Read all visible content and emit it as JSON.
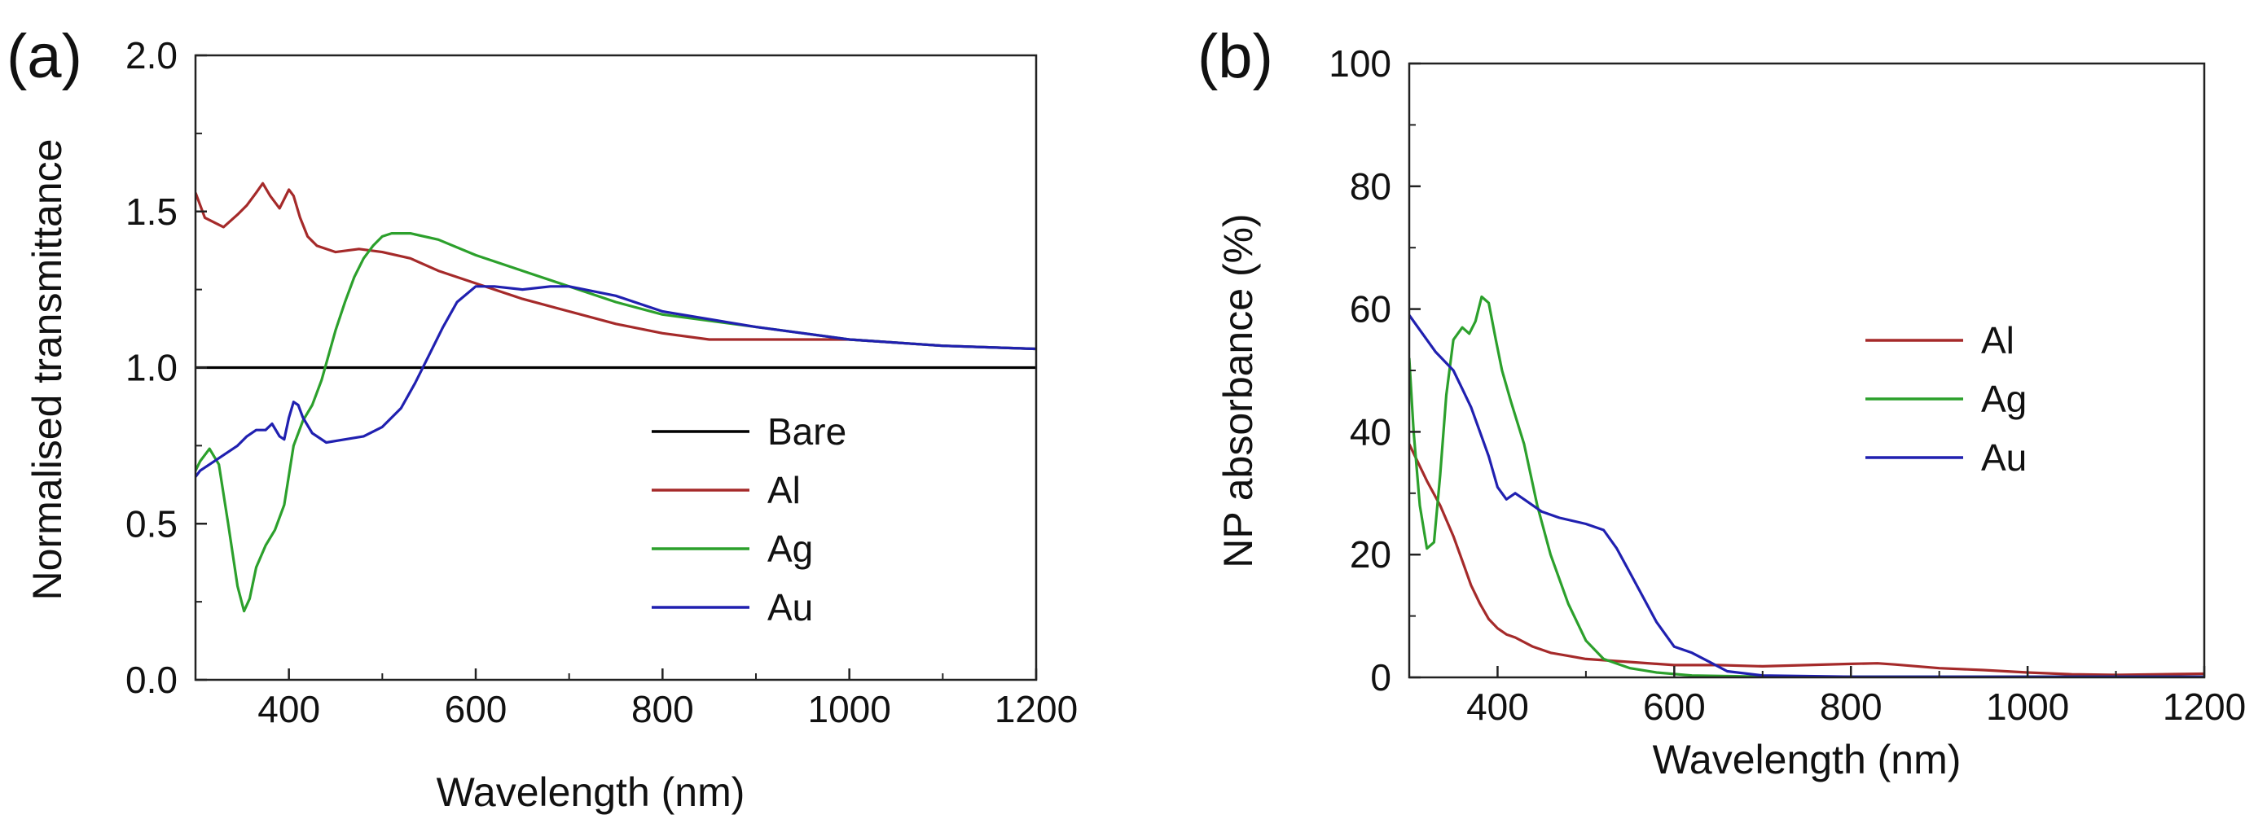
{
  "chart_data": [
    {
      "type": "line",
      "panel_label": "(a)",
      "title": "",
      "xlabel": "Wavelength (nm)",
      "ylabel": "Normalised transmittance",
      "xlim": [
        300,
        1200
      ],
      "ylim": [
        0.0,
        2.0
      ],
      "xticks": [
        400,
        600,
        800,
        1000,
        1200
      ],
      "xtick_labels": [
        "400",
        "600",
        "800",
        "1000",
        "1200"
      ],
      "yticks": [
        0.0,
        0.5,
        1.0,
        1.5,
        2.0
      ],
      "ytick_labels": [
        "0.0",
        "0.5",
        "1.0",
        "1.5",
        "2.0"
      ],
      "grid": false,
      "legend_position": "lower-right",
      "series": [
        {
          "name": "Bare",
          "color": "#000000",
          "x": [
            300,
            1200
          ],
          "y": [
            1.0,
            1.0
          ]
        },
        {
          "name": "Al",
          "color": "#a52a2a",
          "x": [
            300,
            310,
            330,
            345,
            355,
            365,
            372,
            380,
            390,
            400,
            405,
            412,
            420,
            430,
            450,
            475,
            500,
            530,
            560,
            600,
            650,
            700,
            750,
            800,
            850,
            900,
            950,
            1000,
            1100,
            1200
          ],
          "y": [
            1.56,
            1.48,
            1.45,
            1.49,
            1.52,
            1.56,
            1.59,
            1.55,
            1.51,
            1.57,
            1.55,
            1.48,
            1.42,
            1.39,
            1.37,
            1.38,
            1.37,
            1.35,
            1.31,
            1.27,
            1.22,
            1.18,
            1.14,
            1.11,
            1.09,
            1.09,
            1.09,
            1.09,
            1.07,
            1.06
          ]
        },
        {
          "name": "Ag",
          "color": "#2ca02c",
          "x": [
            300,
            305,
            315,
            325,
            335,
            345,
            352,
            358,
            365,
            375,
            385,
            395,
            405,
            415,
            425,
            435,
            450,
            460,
            470,
            480,
            490,
            500,
            510,
            530,
            560,
            600,
            650,
            700,
            750,
            800,
            900,
            1000,
            1100,
            1200
          ],
          "y": [
            0.67,
            0.7,
            0.74,
            0.69,
            0.5,
            0.3,
            0.22,
            0.26,
            0.36,
            0.43,
            0.48,
            0.56,
            0.75,
            0.83,
            0.88,
            0.96,
            1.12,
            1.21,
            1.29,
            1.35,
            1.39,
            1.42,
            1.43,
            1.43,
            1.41,
            1.36,
            1.31,
            1.26,
            1.21,
            1.17,
            1.13,
            1.09,
            1.07,
            1.06
          ]
        },
        {
          "name": "Au",
          "color": "#2020b0",
          "x": [
            300,
            305,
            315,
            330,
            345,
            355,
            365,
            375,
            382,
            390,
            395,
            400,
            405,
            410,
            415,
            425,
            440,
            460,
            480,
            500,
            520,
            535,
            550,
            565,
            580,
            600,
            620,
            650,
            680,
            700,
            750,
            800,
            900,
            1000,
            1100,
            1200
          ],
          "y": [
            0.65,
            0.67,
            0.69,
            0.72,
            0.75,
            0.78,
            0.8,
            0.8,
            0.82,
            0.78,
            0.77,
            0.84,
            0.89,
            0.88,
            0.84,
            0.79,
            0.76,
            0.77,
            0.78,
            0.81,
            0.87,
            0.95,
            1.04,
            1.13,
            1.21,
            1.26,
            1.26,
            1.25,
            1.26,
            1.26,
            1.23,
            1.18,
            1.13,
            1.09,
            1.07,
            1.06
          ]
        }
      ]
    },
    {
      "type": "line",
      "panel_label": "(b)",
      "title": "",
      "xlabel": "Wavelength (nm)",
      "ylabel": "NP absorbance (%)",
      "xlim": [
        300,
        1200
      ],
      "ylim": [
        0,
        100
      ],
      "xticks": [
        400,
        600,
        800,
        1000,
        1200
      ],
      "xtick_labels": [
        "400",
        "600",
        "800",
        "1000",
        "1200"
      ],
      "yticks": [
        0,
        20,
        40,
        60,
        80,
        100
      ],
      "ytick_labels": [
        "0",
        "20",
        "40",
        "60",
        "80",
        "100"
      ],
      "grid": false,
      "legend_position": "center-right",
      "series": [
        {
          "name": "Al",
          "color": "#a52a2a",
          "x": [
            300,
            310,
            320,
            335,
            350,
            360,
            370,
            380,
            390,
            400,
            410,
            420,
            440,
            460,
            480,
            500,
            550,
            600,
            650,
            700,
            750,
            800,
            830,
            850,
            900,
            950,
            1000,
            1050,
            1100,
            1150,
            1200
          ],
          "y": [
            38,
            35,
            32,
            28,
            23,
            19,
            15,
            12,
            9.5,
            8,
            7,
            6.5,
            5,
            4,
            3.5,
            3,
            2.5,
            2,
            2,
            1.8,
            2,
            2.2,
            2.3,
            2.1,
            1.5,
            1.2,
            0.8,
            0.5,
            0.4,
            0.5,
            0.6
          ]
        },
        {
          "name": "Ag",
          "color": "#2ca02c",
          "x": [
            300,
            305,
            312,
            320,
            328,
            335,
            342,
            350,
            360,
            368,
            375,
            382,
            390,
            398,
            405,
            415,
            430,
            445,
            460,
            480,
            500,
            520,
            550,
            580,
            620,
            700,
            800,
            1000,
            1200
          ],
          "y": [
            52,
            40,
            28,
            21,
            22,
            33,
            46,
            55,
            57,
            56,
            58,
            62,
            61,
            55,
            50,
            45,
            38,
            28,
            20,
            12,
            6,
            3,
            1.5,
            0.8,
            0.3,
            0.1,
            0.1,
            0.1,
            0.1
          ]
        },
        {
          "name": "Au",
          "color": "#2020b0",
          "x": [
            300,
            310,
            330,
            350,
            360,
            370,
            380,
            390,
            400,
            410,
            420,
            430,
            450,
            470,
            500,
            520,
            535,
            550,
            565,
            580,
            600,
            620,
            640,
            660,
            700,
            800,
            1000,
            1200
          ],
          "y": [
            59,
            57,
            53,
            50,
            47,
            44,
            40,
            36,
            31,
            29,
            30,
            29,
            27,
            26,
            25,
            24,
            21,
            17,
            13,
            9,
            5,
            4,
            2.5,
            1,
            0.3,
            0.1,
            0.1,
            0.1
          ]
        }
      ]
    }
  ]
}
